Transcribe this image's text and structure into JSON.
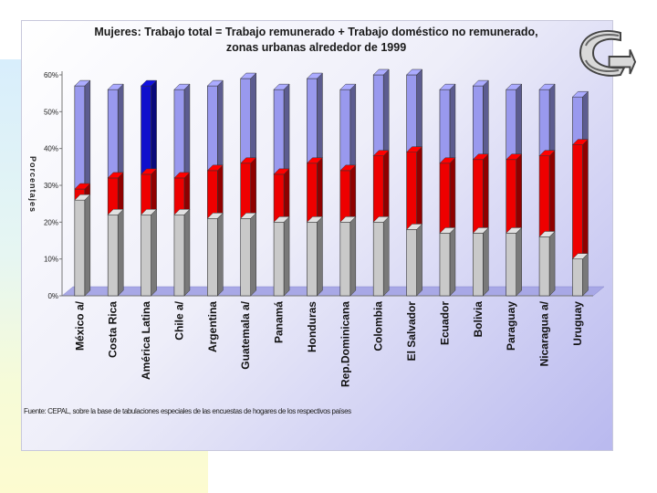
{
  "chart_data": {
    "type": "bar",
    "title": "Mujeres: Trabajo total = Trabajo remunerado + Trabajo doméstico no remunerado,",
    "subtitle": "zonas urbanas alrededor de 1999",
    "ylabel": "Porcentajes",
    "ylim": [
      0,
      60
    ],
    "yticks": [
      "0%",
      "10%",
      "20%",
      "30%",
      "40%",
      "50%",
      "60%"
    ],
    "categories": [
      "México a/",
      "Costa Rica",
      "América Latina",
      "Chile a/",
      "Argentina",
      "Guatemala a/",
      "Panamá",
      "Honduras",
      "Rep.Dominicana",
      "Colombia",
      "El Salvador",
      "Ecuador",
      "Bolivia",
      "Paraguay",
      "Nicaragua a/",
      "Uruguay"
    ],
    "highlight_category": "América Latina",
    "series": [
      {
        "values": [
          26,
          22,
          22,
          22,
          21,
          21,
          20,
          20,
          20,
          20,
          18,
          17,
          17,
          17,
          16,
          10
        ]
      },
      {
        "values": [
          29,
          32,
          33,
          32,
          34,
          36,
          33,
          36,
          34,
          38,
          39,
          36,
          37,
          37,
          38,
          41
        ]
      },
      {
        "values": [
          57,
          56,
          57,
          56,
          57,
          59,
          56,
          59,
          56,
          60,
          60,
          56,
          57,
          56,
          56,
          54
        ]
      }
    ],
    "colors": {
      "series1": "#c9c9c9",
      "series2": "#ee0000",
      "series3": "#9999ee",
      "highlight": "#1010cc"
    },
    "grid": false,
    "legend": "none"
  },
  "source_note": "Fuente: CEPAL, sobre la base de tabulaciones especiales de las encuestas de hogares de los respectivos países",
  "nav_icon": "return-arrow-icon"
}
